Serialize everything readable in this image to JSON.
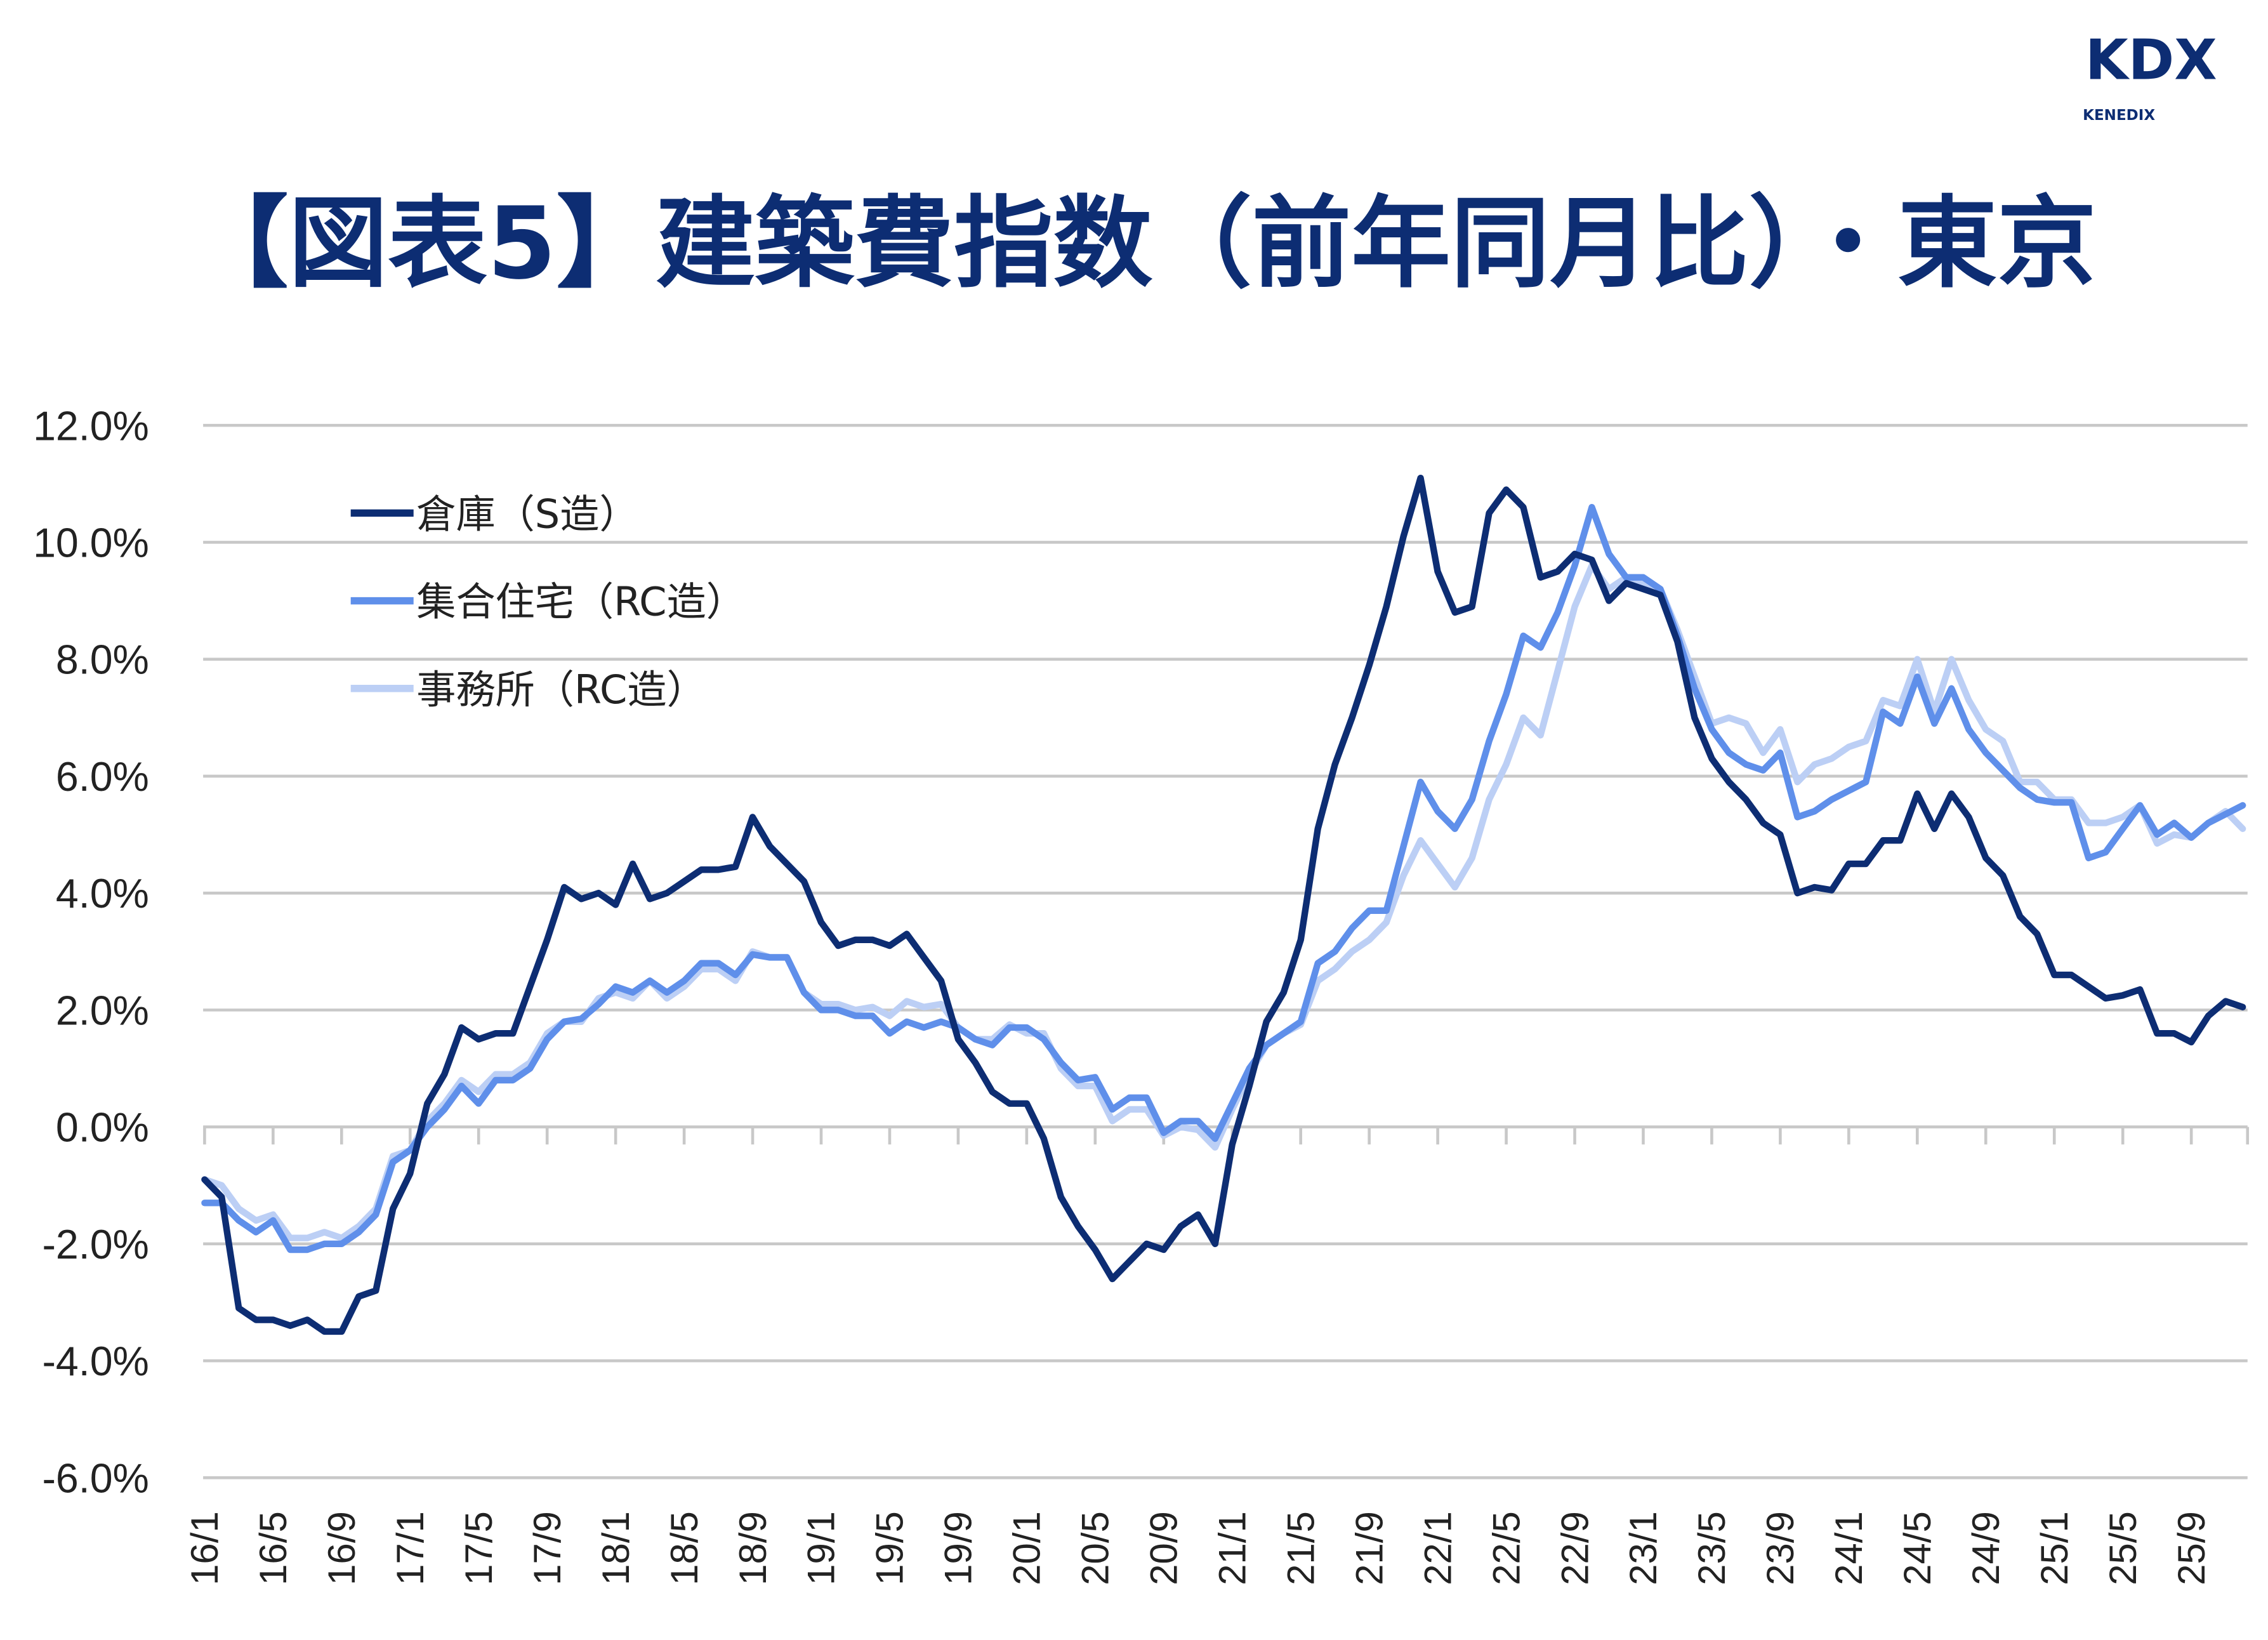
{
  "logo": {
    "text": "KDX",
    "subtext": "KENEDIX"
  },
  "chart_data": {
    "type": "line",
    "title": "【図表5】建築費指数（前年同月比）・東京",
    "xlabel": "",
    "ylabel": "",
    "ylim": [
      -6,
      12
    ],
    "yticks": [
      "12.0%",
      "10.0%",
      "8.0%",
      "6.0%",
      "4.0%",
      "2.0%",
      "0.0%",
      "-2.0%",
      "-4.0%",
      "-6.0%"
    ],
    "ytick_values": [
      12,
      10,
      8,
      6,
      4,
      2,
      0,
      -2,
      -4,
      -6
    ],
    "x_start": "16/1",
    "x_end": "25/12",
    "xtick_labels": [
      "16/1",
      "16/5",
      "16/9",
      "17/1",
      "17/5",
      "17/9",
      "18/1",
      "18/5",
      "18/9",
      "19/1",
      "19/5",
      "19/9",
      "20/1",
      "20/5",
      "20/9",
      "21/1",
      "21/5",
      "21/9",
      "22/1",
      "22/5",
      "22/9",
      "23/1",
      "23/5",
      "23/9",
      "24/1",
      "24/5",
      "24/9",
      "25/1",
      "25/5",
      "25/9"
    ],
    "grid": "horizontal",
    "legend_placement": "top-left",
    "series": [
      {
        "name": "倉庫（S造）",
        "color": "#0d2d73",
        "values": [
          -0.9,
          -1.2,
          -3.1,
          -3.3,
          -3.3,
          -3.4,
          -3.3,
          -3.5,
          -3.5,
          -2.9,
          -2.8,
          -1.4,
          -0.8,
          0.4,
          0.9,
          1.7,
          1.5,
          1.6,
          1.6,
          2.4,
          3.2,
          4.1,
          3.9,
          4.0,
          3.8,
          4.5,
          3.9,
          4.0,
          4.2,
          4.4,
          4.4,
          4.45,
          5.3,
          4.8,
          4.5,
          4.2,
          3.5,
          3.1,
          3.2,
          3.2,
          3.1,
          3.3,
          2.9,
          2.5,
          1.5,
          1.1,
          0.6,
          0.4,
          0.4,
          -0.2,
          -1.2,
          -1.7,
          -2.1,
          -2.6,
          -2.3,
          -2.0,
          -2.1,
          -1.7,
          -1.5,
          -2.0,
          -0.3,
          0.7,
          1.8,
          2.3,
          3.2,
          5.1,
          6.2,
          7.0,
          7.9,
          8.9,
          10.1,
          11.1,
          9.5,
          8.8,
          8.9,
          10.5,
          10.9,
          10.6,
          9.4,
          9.5,
          9.8,
          9.7,
          9.0,
          9.3,
          9.2,
          9.1,
          8.3,
          7.0,
          6.3,
          5.9,
          5.6,
          5.2,
          5.0,
          4.0,
          4.1,
          4.05,
          4.5,
          4.5,
          4.9,
          4.9,
          5.7,
          5.1,
          5.7,
          5.3,
          4.6,
          4.3,
          3.6,
          3.3,
          2.6,
          2.6,
          2.4,
          2.2,
          2.25,
          2.35,
          1.6,
          1.6,
          1.45,
          1.9,
          2.15,
          2.05
        ]
      },
      {
        "name": "集合住宅（RC造）",
        "color": "#5f8fea",
        "values": [
          -1.3,
          -1.3,
          -1.6,
          -1.8,
          -1.6,
          -2.1,
          -2.1,
          -2.0,
          -2.0,
          -1.8,
          -1.5,
          -0.6,
          -0.4,
          0.0,
          0.3,
          0.7,
          0.4,
          0.8,
          0.8,
          1.0,
          1.5,
          1.8,
          1.85,
          2.1,
          2.4,
          2.3,
          2.5,
          2.3,
          2.5,
          2.8,
          2.8,
          2.6,
          2.95,
          2.9,
          2.9,
          2.3,
          2.0,
          2.0,
          1.9,
          1.9,
          1.6,
          1.8,
          1.7,
          1.8,
          1.7,
          1.5,
          1.4,
          1.7,
          1.7,
          1.5,
          1.1,
          0.8,
          0.85,
          0.3,
          0.5,
          0.5,
          -0.1,
          0.1,
          0.1,
          -0.2,
          0.4,
          1.0,
          1.4,
          1.6,
          1.8,
          2.8,
          3.0,
          3.4,
          3.7,
          3.7,
          4.8,
          5.9,
          5.4,
          5.1,
          5.6,
          6.6,
          7.4,
          8.4,
          8.2,
          8.8,
          9.6,
          10.6,
          9.8,
          9.4,
          9.4,
          9.2,
          8.4,
          7.5,
          6.8,
          6.4,
          6.2,
          6.1,
          6.4,
          5.3,
          5.4,
          5.6,
          5.75,
          5.9,
          7.1,
          6.9,
          7.7,
          6.9,
          7.5,
          6.8,
          6.4,
          6.1,
          5.8,
          5.6,
          5.55,
          5.55,
          4.6,
          4.7,
          5.1,
          5.5,
          5.0,
          5.2,
          4.95,
          5.2,
          5.35,
          5.5
        ]
      },
      {
        "name": "事務所（RC造）",
        "color": "#bccff5",
        "values": [
          -0.9,
          -1.0,
          -1.4,
          -1.6,
          -1.5,
          -1.9,
          -1.9,
          -1.8,
          -1.9,
          -1.7,
          -1.4,
          -0.5,
          -0.4,
          0.1,
          0.4,
          0.8,
          0.6,
          0.9,
          0.9,
          1.1,
          1.6,
          1.8,
          1.8,
          2.2,
          2.3,
          2.2,
          2.5,
          2.2,
          2.4,
          2.7,
          2.7,
          2.5,
          3.0,
          2.9,
          2.9,
          2.3,
          2.1,
          2.1,
          2.0,
          2.05,
          1.9,
          2.15,
          2.05,
          2.1,
          1.7,
          1.5,
          1.5,
          1.75,
          1.6,
          1.6,
          1.0,
          0.7,
          0.7,
          0.1,
          0.3,
          0.3,
          -0.15,
          0.0,
          -0.05,
          -0.35,
          0.3,
          0.9,
          1.4,
          1.6,
          1.75,
          2.5,
          2.7,
          3.0,
          3.2,
          3.5,
          4.3,
          4.9,
          4.5,
          4.1,
          4.6,
          5.6,
          6.2,
          7.0,
          6.7,
          7.8,
          8.9,
          9.6,
          9.2,
          9.4,
          9.3,
          9.2,
          8.5,
          7.7,
          6.9,
          7.0,
          6.9,
          6.4,
          6.8,
          5.9,
          6.2,
          6.3,
          6.5,
          6.6,
          7.3,
          7.2,
          8.0,
          7.1,
          8.0,
          7.3,
          6.8,
          6.6,
          5.9,
          5.9,
          5.6,
          5.6,
          5.2,
          5.2,
          5.3,
          5.5,
          4.85,
          5.0,
          4.95,
          5.2,
          5.4,
          5.1
        ]
      }
    ]
  }
}
